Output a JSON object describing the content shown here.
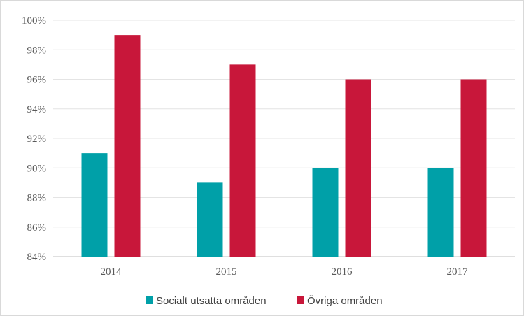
{
  "chart_data": {
    "type": "bar",
    "categories": [
      "2014",
      "2015",
      "2016",
      "2017"
    ],
    "series": [
      {
        "name": "Socialt utsatta områden",
        "values": [
          91,
          89,
          90,
          90
        ],
        "color": "#00a0a8"
      },
      {
        "name": "Övriga områden",
        "values": [
          99,
          97,
          96,
          96
        ],
        "color": "#c8173a"
      }
    ],
    "ylim": [
      84,
      100
    ],
    "yticks": [
      "84%",
      "86%",
      "88%",
      "90%",
      "92%",
      "94%",
      "96%",
      "98%",
      "100%"
    ],
    "grid": true,
    "legend_position": "bottom"
  }
}
